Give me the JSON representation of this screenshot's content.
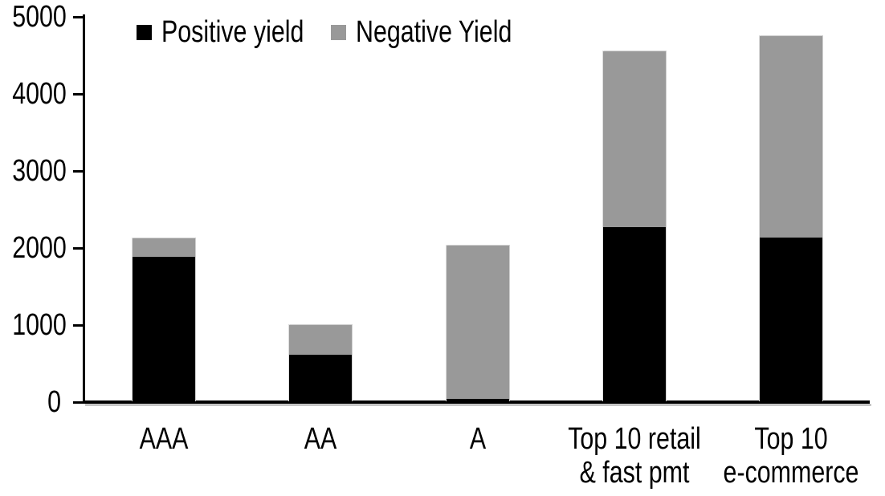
{
  "chart_data": {
    "type": "bar",
    "stacked": true,
    "title": "",
    "categories": [
      "AAA",
      "AA",
      "A",
      "Top 10 retail & fast pmt",
      "Top 10 e-commerce"
    ],
    "category_label_lines": [
      [
        "AAA"
      ],
      [
        "AA"
      ],
      [
        "A"
      ],
      [
        "Top 10 retail",
        "& fast pmt"
      ],
      [
        "Top 10",
        "e-commerce"
      ]
    ],
    "series": [
      {
        "name": "Positive yield",
        "color": "#000000",
        "values": [
          1890,
          615,
          45,
          2270,
          2140
        ]
      },
      {
        "name": "Negative Yield",
        "color": "#999999",
        "values": [
          235,
          385,
          1985,
          2285,
          2615
        ]
      }
    ],
    "ylim": [
      0,
      5000
    ],
    "yticks": [
      0,
      1000,
      2000,
      3000,
      4000,
      5000
    ],
    "grid": false,
    "legend_position": "top",
    "axis_color": "#000000",
    "background_color": "#ffffff"
  }
}
